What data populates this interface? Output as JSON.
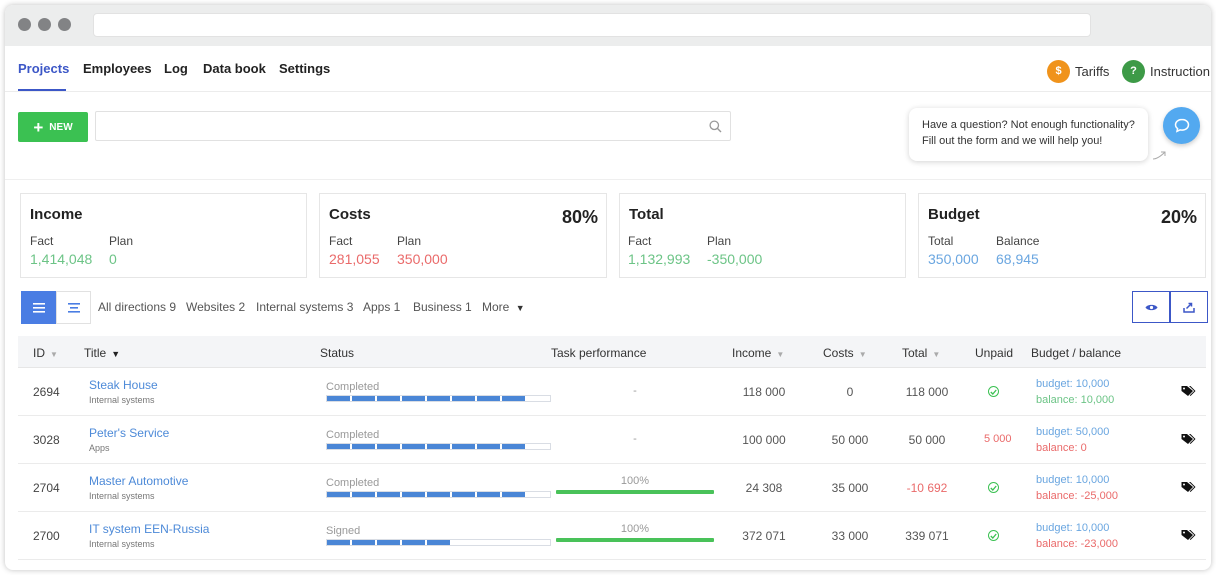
{
  "nav": {
    "tabs": [
      {
        "label": "Projects",
        "active": true
      },
      {
        "label": "Employees"
      },
      {
        "label": "Log"
      },
      {
        "label": "Data book"
      },
      {
        "label": "Settings"
      }
    ],
    "tariffs": {
      "label": "Tariffs",
      "icon": "dollar-icon",
      "icon_text": "$",
      "color": "#f0931b"
    },
    "instruction": {
      "label": "Instruction",
      "icon": "question-icon",
      "icon_text": "?",
      "color": "#3d9a47"
    }
  },
  "toolbar": {
    "new_label": "NEW",
    "search_placeholder": ""
  },
  "help": {
    "line1": "Have a question? Not enough functionality?",
    "line2": "Fill out the form and we will help you!"
  },
  "summary": {
    "income": {
      "title": "Income",
      "fact_label": "Fact",
      "fact": "1,414,048",
      "plan_label": "Plan",
      "plan": "0"
    },
    "costs": {
      "title": "Costs",
      "percent": "80%",
      "fact_label": "Fact",
      "fact": "281,055",
      "plan_label": "Plan",
      "plan": "350,000"
    },
    "total": {
      "title": "Total",
      "fact_label": "Fact",
      "fact": "1,132,993",
      "plan_label": "Plan",
      "plan": "-350,000"
    },
    "budget": {
      "title": "Budget",
      "percent": "20%",
      "total_label": "Total",
      "total": "350,000",
      "balance_label": "Balance",
      "balance": "68,945"
    }
  },
  "filters": [
    "All directions 9",
    "Websites 2",
    "Internal systems 3",
    "Apps 1",
    "Business 1",
    "More"
  ],
  "table": {
    "columns": {
      "id": "ID",
      "title": "Title",
      "status": "Status",
      "task_performance": "Task performance",
      "income": "Income",
      "costs": "Costs",
      "total": "Total",
      "unpaid": "Unpaid",
      "budget_balance": "Budget / balance"
    },
    "rows": [
      {
        "id": "2694",
        "title": "Steak House",
        "category": "Internal systems",
        "status": "Completed",
        "status_progress": 0.9,
        "performance": "-",
        "performance_value": null,
        "income": "118 000",
        "costs": "0",
        "total": "118 000",
        "total_negative": false,
        "unpaid": "check",
        "budget": "budget: 10,000",
        "balance": "balance: 10,000",
        "balance_negative": false
      },
      {
        "id": "3028",
        "title": "Peter's Service",
        "category": "Apps",
        "status": "Completed",
        "status_progress": 0.9,
        "performance": "-",
        "performance_value": null,
        "income": "100 000",
        "costs": "50 000",
        "total": "50 000",
        "total_negative": false,
        "unpaid": "5 000",
        "budget": "budget: 50,000",
        "balance": "balance: 0",
        "balance_negative": true
      },
      {
        "id": "2704",
        "title": "Master Automotive",
        "category": "Internal systems",
        "status": "Completed",
        "status_progress": 0.9,
        "performance": "100%",
        "performance_value": 1.0,
        "income": "24 308",
        "costs": "35 000",
        "total": "-10 692",
        "total_negative": true,
        "unpaid": "check",
        "budget": "budget: 10,000",
        "balance": "balance: -25,000",
        "balance_negative": true
      },
      {
        "id": "2700",
        "title": "IT system EEN-Russia",
        "category": "Internal systems",
        "status": "Signed",
        "status_progress": 0.5,
        "performance": "100%",
        "performance_value": 1.0,
        "income": "372 071",
        "costs": "33 000",
        "total": "339 071",
        "total_negative": false,
        "unpaid": "check",
        "budget": "budget: 10,000",
        "balance": "balance: -23,000",
        "balance_negative": true
      }
    ]
  }
}
